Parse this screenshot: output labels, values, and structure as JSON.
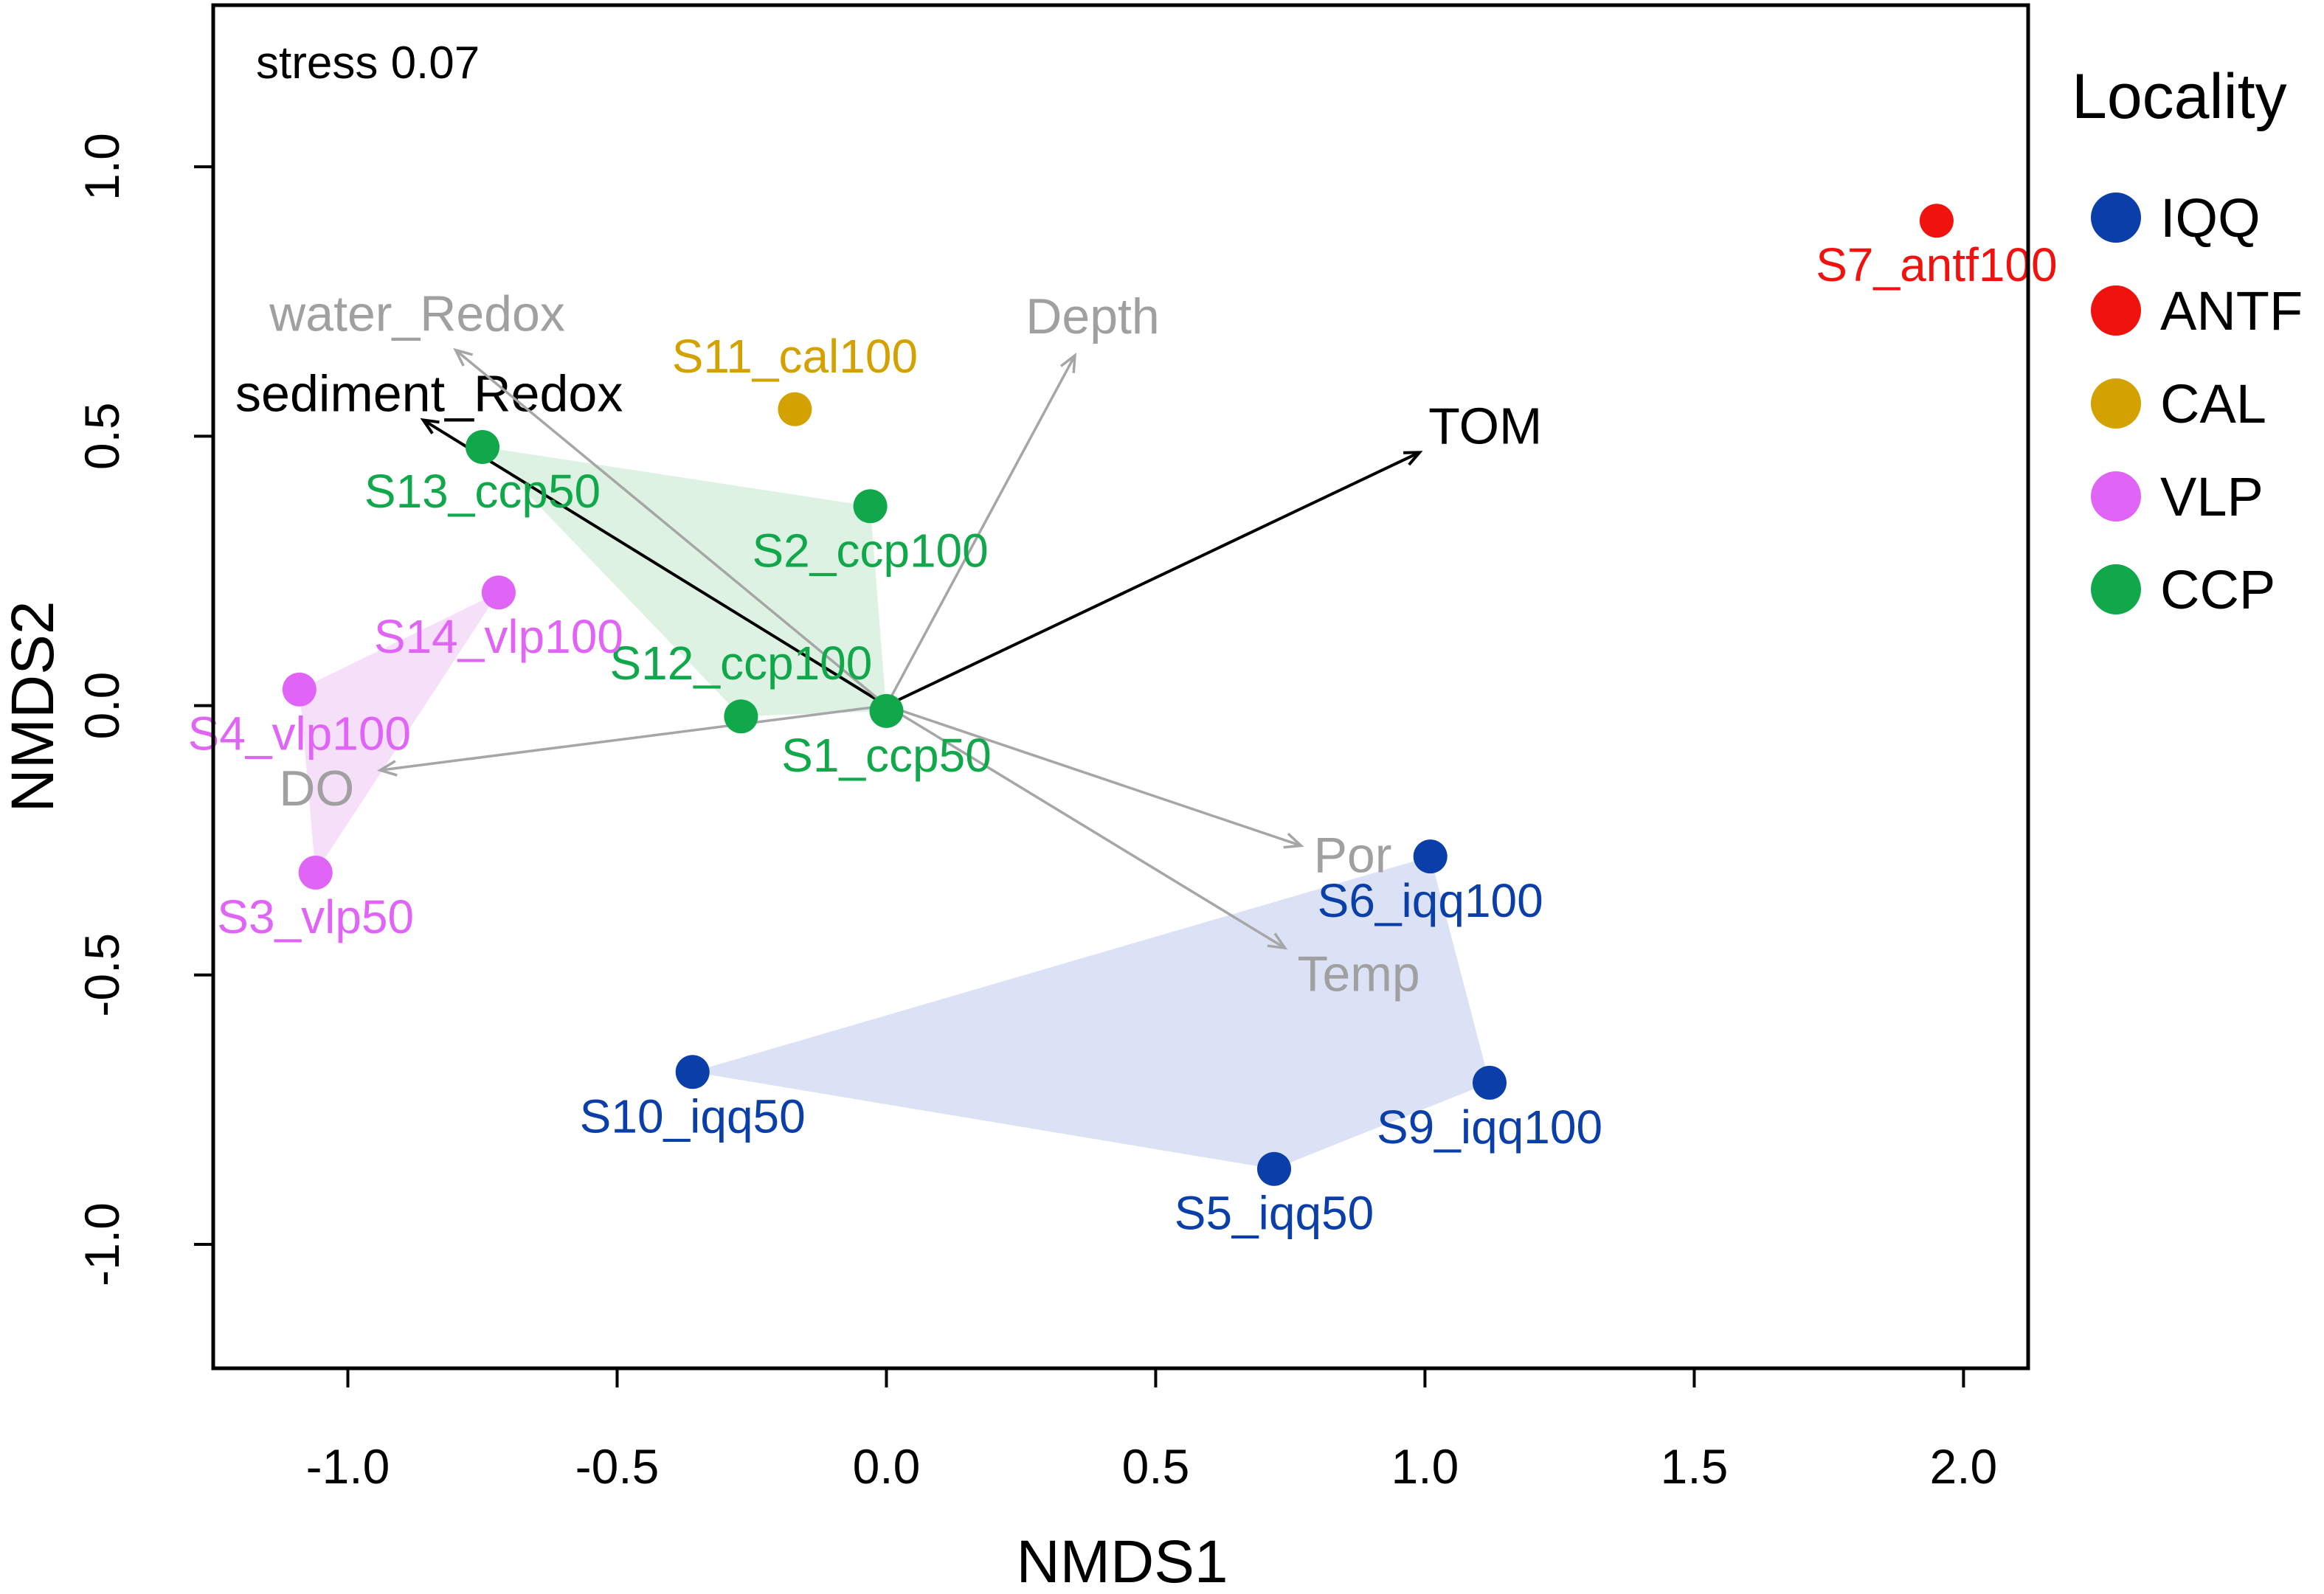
{
  "chart_data": {
    "type": "scatter",
    "subtype": "NMDS ordination biplot",
    "xlabel": "NMDS1",
    "ylabel": "NMDS2",
    "xlim": [
      -1.25,
      2.12
    ],
    "ylim": [
      -1.23,
      1.3
    ],
    "x_ticks": [
      -1.0,
      -0.5,
      0.0,
      0.5,
      1.0,
      1.5,
      2.0
    ],
    "x_tick_labels": [
      "-1.0",
      "-0.5",
      "0.0",
      "0.5",
      "1.0",
      "1.5",
      "2.0"
    ],
    "y_ticks": [
      -1.0,
      -0.5,
      0.0,
      0.5,
      1.0
    ],
    "y_tick_labels": [
      "-1.0",
      "-0.5",
      "0.0",
      "0.5",
      "1.0"
    ],
    "grid": false,
    "annotation": "stress 0.07",
    "legend": {
      "title": "Locality",
      "position": "right",
      "entries": [
        {
          "name": "IQQ",
          "color": "#0a3ea8"
        },
        {
          "name": "ANTF",
          "color": "#f0120f"
        },
        {
          "name": "CAL",
          "color": "#d3a100"
        },
        {
          "name": "VLP",
          "color": "#e064f5"
        },
        {
          "name": "CCP",
          "color": "#10a84b"
        }
      ]
    },
    "groups": [
      {
        "name": "IQQ",
        "color": "#0a3ea8",
        "hull_fill": "#dbe2f5",
        "hull": [
          "S10_iqq50",
          "S6_iqq100",
          "S9_iqq100",
          "S5_iqq50"
        ]
      },
      {
        "name": "ANTF",
        "color": "#f0120f",
        "hull": []
      },
      {
        "name": "CAL",
        "color": "#d3a100",
        "hull": []
      },
      {
        "name": "VLP",
        "color": "#e064f5",
        "hull_fill": "#f6dff9",
        "hull": [
          "S14_vlp100",
          "S4_vlp100",
          "S3_vlp50"
        ]
      },
      {
        "name": "CCP",
        "color": "#10a84b",
        "hull_fill": "#ddf2e2",
        "hull": [
          "S13_ccp50",
          "S2_ccp100",
          "S1_ccp50",
          "S12_ccp100"
        ]
      }
    ],
    "points": [
      {
        "label": "S7_antf100",
        "group": "ANTF",
        "x": 1.95,
        "y": 0.9,
        "label_pos": "below"
      },
      {
        "label": "S11_cal100",
        "group": "CAL",
        "x": -0.17,
        "y": 0.55,
        "label_pos": "above"
      },
      {
        "label": "S13_ccp50",
        "group": "CCP",
        "x": -0.75,
        "y": 0.48,
        "label_pos": "below"
      },
      {
        "label": "S2_ccp100",
        "group": "CCP",
        "x": -0.03,
        "y": 0.37,
        "label_pos": "below"
      },
      {
        "label": "S12_ccp100",
        "group": "CCP",
        "x": -0.27,
        "y": -0.02,
        "label_pos": "above"
      },
      {
        "label": "S1_ccp50",
        "group": "CCP",
        "x": 0.0,
        "y": -0.01,
        "label_pos": "below"
      },
      {
        "label": "S14_vlp100",
        "group": "VLP",
        "x": -0.72,
        "y": 0.21,
        "label_pos": "below"
      },
      {
        "label": "S4_vlp100",
        "group": "VLP",
        "x": -1.09,
        "y": 0.03,
        "label_pos": "below"
      },
      {
        "label": "S3_vlp50",
        "group": "VLP",
        "x": -1.06,
        "y": -0.31,
        "label_pos": "below"
      },
      {
        "label": "S6_iqq100",
        "group": "IQQ",
        "x": 1.01,
        "y": -0.28,
        "label_pos": "below"
      },
      {
        "label": "S9_iqq100",
        "group": "IQQ",
        "x": 1.12,
        "y": -0.7,
        "label_pos": "below"
      },
      {
        "label": "S10_iqq50",
        "group": "IQQ",
        "x": -0.36,
        "y": -0.68,
        "label_pos": "below"
      },
      {
        "label": "S5_iqq50",
        "group": "IQQ",
        "x": 0.72,
        "y": -0.86,
        "label_pos": "below"
      }
    ],
    "vectors": [
      {
        "label": "TOM",
        "x": 0.99,
        "y": 0.47,
        "color": "#000000",
        "significant": true
      },
      {
        "label": "sediment_Redox",
        "x": -0.86,
        "y": 0.53,
        "color": "#000000",
        "significant": true
      },
      {
        "label": "water_Redox",
        "x": -0.8,
        "y": 0.66,
        "color": "#a6a6a6",
        "significant": false
      },
      {
        "label": "Depth",
        "x": 0.35,
        "y": 0.65,
        "color": "#a6a6a6",
        "significant": false
      },
      {
        "label": "DO",
        "x": -0.94,
        "y": -0.12,
        "color": "#a6a6a6",
        "significant": false
      },
      {
        "label": "Por",
        "x": 0.77,
        "y": -0.26,
        "color": "#a6a6a6",
        "significant": false
      },
      {
        "label": "Temp",
        "x": 0.74,
        "y": -0.45,
        "color": "#a6a6a6",
        "significant": false
      }
    ]
  }
}
